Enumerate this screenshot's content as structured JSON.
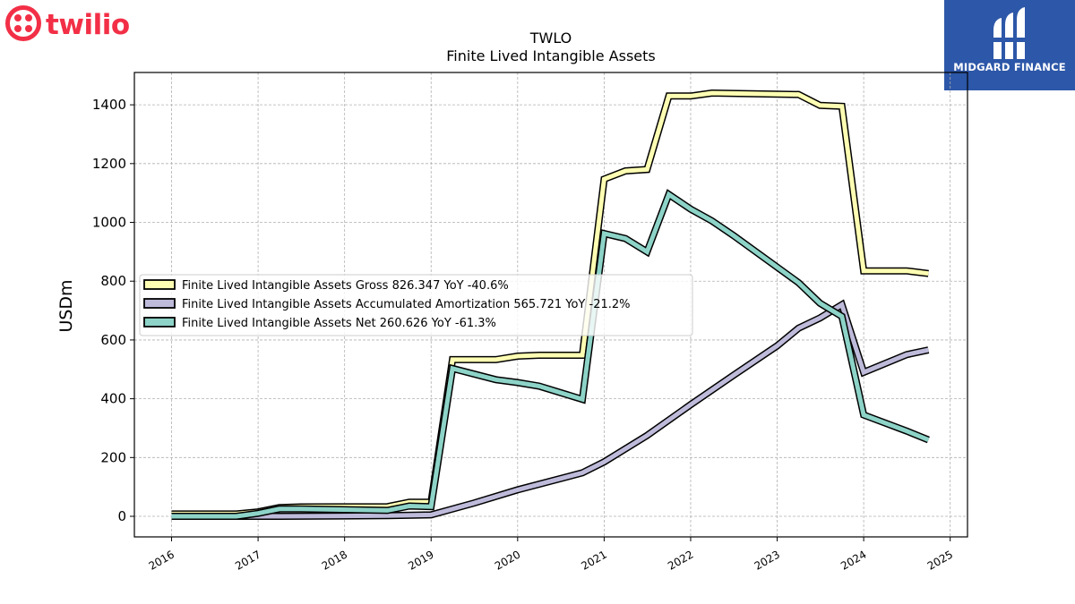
{
  "logos": {
    "left": "twilio",
    "right": "MIDGARD FINANCE"
  },
  "chart_data": {
    "type": "line",
    "title": "TWLO",
    "subtitle": "Finite Lived Intangible Assets",
    "ylabel": "USDm",
    "xlabel": "",
    "ylim": [
      -70,
      1510
    ],
    "xlim": [
      2015.57,
      2025.2
    ],
    "yticks": [
      0,
      200,
      400,
      600,
      800,
      1000,
      1200,
      1400
    ],
    "xticks": [
      "2016",
      "2017",
      "2018",
      "2019",
      "2020",
      "2021",
      "2022",
      "2023",
      "2024",
      "2025"
    ],
    "grid": true,
    "legend_position": "center-left",
    "series": [
      {
        "name": "Finite Lived Intangible Assets Gross",
        "legend": "Finite Lived Intangible Assets Gross  826.347 YoY -40.6%",
        "color": "#ffffb3",
        "points": [
          [
            "2016-01-01",
            8
          ],
          [
            "2016-10-01",
            8
          ],
          [
            "2017-01-01",
            15
          ],
          [
            "2017-04-01",
            30
          ],
          [
            "2017-07-01",
            32
          ],
          [
            "2018-07-01",
            33
          ],
          [
            "2018-10-01",
            48
          ],
          [
            "2019-01-01",
            48
          ],
          [
            "2019-04-01",
            533
          ],
          [
            "2019-07-01",
            533
          ],
          [
            "2019-10-01",
            533
          ],
          [
            "2020-01-01",
            545
          ],
          [
            "2020-04-01",
            548
          ],
          [
            "2020-10-01",
            548
          ],
          [
            "2021-01-01",
            1147
          ],
          [
            "2021-04-01",
            1175
          ],
          [
            "2021-07-01",
            1180
          ],
          [
            "2021-10-01",
            1430
          ],
          [
            "2022-01-01",
            1430
          ],
          [
            "2022-04-01",
            1440
          ],
          [
            "2023-04-01",
            1435
          ],
          [
            "2023-07-01",
            1398
          ],
          [
            "2023-10-01",
            1395
          ],
          [
            "2024-01-01",
            835
          ],
          [
            "2024-07-01",
            835
          ],
          [
            "2024-10-01",
            826
          ]
        ]
      },
      {
        "name": "Finite Lived Intangible Assets Accumulated Amortization",
        "legend": "Finite Lived Intangible Assets Accumulated Amortization  565.721 YoY -21.2%",
        "color": "#bebada",
        "points": [
          [
            "2016-01-01",
            0
          ],
          [
            "2016-10-01",
            0
          ],
          [
            "2017-01-01",
            0
          ],
          [
            "2017-04-01",
            0
          ],
          [
            "2018-07-01",
            2
          ],
          [
            "2019-01-01",
            5
          ],
          [
            "2019-04-01",
            25
          ],
          [
            "2019-07-01",
            45
          ],
          [
            "2020-01-01",
            90
          ],
          [
            "2020-10-01",
            148
          ],
          [
            "2021-01-01",
            185
          ],
          [
            "2021-07-01",
            275
          ],
          [
            "2022-01-01",
            380
          ],
          [
            "2022-07-01",
            480
          ],
          [
            "2023-01-01",
            580
          ],
          [
            "2023-04-01",
            640
          ],
          [
            "2023-07-01",
            675
          ],
          [
            "2023-10-01",
            720
          ],
          [
            "2024-01-01",
            490
          ],
          [
            "2024-07-01",
            550
          ],
          [
            "2024-10-01",
            566
          ]
        ]
      },
      {
        "name": "Finite Lived Intangible Assets Net",
        "legend": "Finite Lived Intangible Assets Net  260.626 YoY -61.3%",
        "color": "#8dd3c7",
        "points": [
          [
            "2016-01-01",
            0
          ],
          [
            "2016-10-01",
            0
          ],
          [
            "2017-01-01",
            10
          ],
          [
            "2017-04-01",
            25
          ],
          [
            "2017-07-01",
            25
          ],
          [
            "2018-07-01",
            20
          ],
          [
            "2018-10-01",
            35
          ],
          [
            "2019-01-01",
            33
          ],
          [
            "2019-04-01",
            503
          ],
          [
            "2019-10-01",
            465
          ],
          [
            "2020-01-01",
            455
          ],
          [
            "2020-04-01",
            443
          ],
          [
            "2020-10-01",
            398
          ],
          [
            "2021-01-01",
            962
          ],
          [
            "2021-04-01",
            945
          ],
          [
            "2021-07-01",
            900
          ],
          [
            "2021-10-01",
            1095
          ],
          [
            "2022-01-01",
            1045
          ],
          [
            "2022-04-01",
            1005
          ],
          [
            "2022-07-01",
            955
          ],
          [
            "2023-04-01",
            795
          ],
          [
            "2023-07-01",
            725
          ],
          [
            "2023-10-01",
            680
          ],
          [
            "2024-01-01",
            345
          ],
          [
            "2024-07-01",
            290
          ],
          [
            "2024-10-01",
            260
          ]
        ]
      }
    ]
  }
}
